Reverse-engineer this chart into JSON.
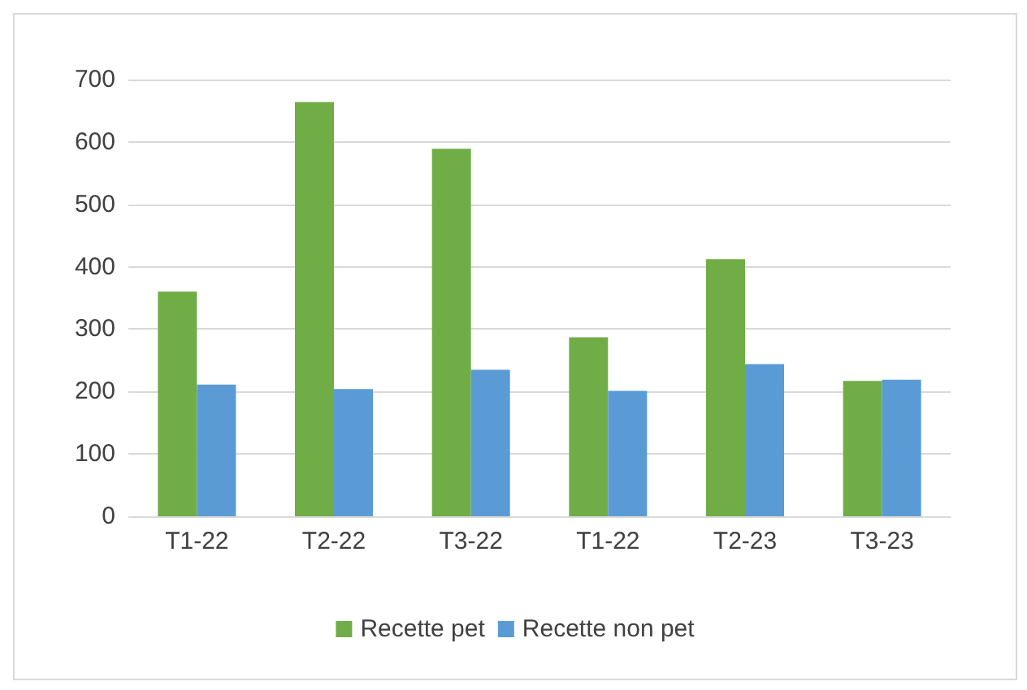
{
  "chart_data": {
    "type": "bar",
    "categories": [
      "T1-22",
      "T2-22",
      "T3-22",
      "T1-22",
      "T2-23",
      "T3-23"
    ],
    "series": [
      {
        "name": "Recette pet",
        "color": "#70ad47",
        "values": [
          360,
          664,
          589,
          287,
          412,
          217
        ]
      },
      {
        "name": "Recette non pet",
        "color": "#5b9bd5",
        "values": [
          211,
          204,
          235,
          201,
          244,
          219
        ]
      }
    ],
    "ylim": [
      0,
      700
    ],
    "yticks": [
      0,
      100,
      200,
      300,
      400,
      500,
      600,
      700
    ],
    "grid": "y",
    "legend": "bottom"
  }
}
